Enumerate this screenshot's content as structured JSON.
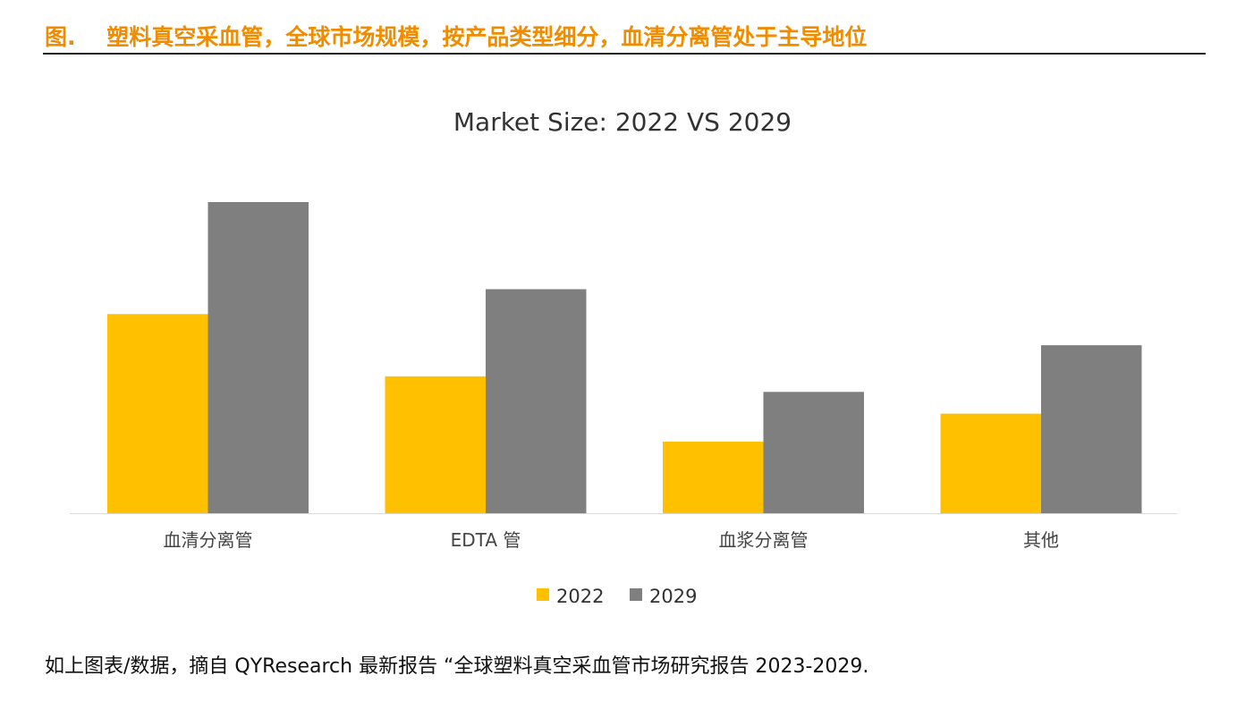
{
  "figure_title": "图.    塑料真空采血管，全球市场规模，按产品类型细分，血清分离管处于主导地位",
  "footer": "如上图表/数据，摘自 QYResearch 最新报告 “全球塑料真空采血管市场研究报告 2023-2029.",
  "chart_data": {
    "type": "bar",
    "title": "Market Size: 2022 VS 2029",
    "categories": [
      "血清分离管",
      "EDTA 管",
      "血浆分离管",
      "其他"
    ],
    "series": [
      {
        "name": "2022",
        "color": "#ffc000",
        "values": [
          64,
          44,
          23,
          32
        ]
      },
      {
        "name": "2029",
        "color": "#7f7f7f",
        "values": [
          100,
          72,
          39,
          54
        ]
      }
    ],
    "ylim": [
      0,
      100
    ],
    "y_axis_shown": false,
    "grid": false,
    "legend": "bottom",
    "note": "relative scale, no y-axis values printed"
  }
}
